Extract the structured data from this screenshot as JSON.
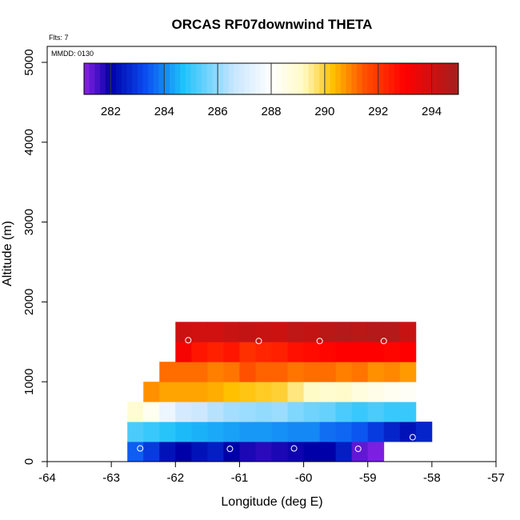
{
  "chart_data": {
    "type": "heatmap",
    "title": "ORCAS RF07downwind THETA",
    "annotations": {
      "flights": "Flts: 7",
      "mmdd": "MMDD: 0130"
    },
    "xlabel": "Longitude (deg E)",
    "ylabel": "Altitude (m)",
    "xlim": [
      -64,
      -57
    ],
    "ylim": [
      0,
      5200
    ],
    "x_ticks": [
      -64,
      -63,
      -62,
      -61,
      -60,
      -59,
      -58,
      -57
    ],
    "y_ticks": [
      0,
      1000,
      2000,
      3000,
      4000,
      5000
    ],
    "colorbar": {
      "min": 281,
      "max": 295,
      "ticks": [
        282,
        284,
        286,
        288,
        290,
        292,
        294
      ],
      "stops": [
        [
          281.0,
          "#8b22e6"
        ],
        [
          282.0,
          "#0000a8"
        ],
        [
          283.3,
          "#0a4df0"
        ],
        [
          284.7,
          "#1ec2fa"
        ],
        [
          286.6,
          "#c8e6ff"
        ],
        [
          288.0,
          "#ffffff"
        ],
        [
          289.2,
          "#fffbc6"
        ],
        [
          290.3,
          "#ffc000"
        ],
        [
          291.5,
          "#ff5000"
        ],
        [
          293.0,
          "#ff0000"
        ],
        [
          295.0,
          "#a31f1f"
        ]
      ]
    },
    "grid": {
      "cell_width_deg": 0.25,
      "cell_height_m": 250,
      "rows": [
        {
          "alt_bottom": 0,
          "lon_start": -62.75,
          "values": [
            283.5,
            283.0,
            282.3,
            282.0,
            282.3,
            282.5,
            282.0,
            281.8,
            281.7,
            281.8,
            281.9,
            282.0,
            282.0,
            282.5,
            281.3,
            281.1
          ]
        },
        {
          "alt_bottom": 250,
          "lon_start": -62.75,
          "values": [
            285.2,
            285.0,
            284.8,
            284.6,
            284.5,
            284.4,
            284.3,
            284.2,
            284.2,
            284.1,
            284.0,
            284.0,
            283.7,
            283.6,
            283.4,
            283.0,
            282.6,
            282.3,
            282.6
          ]
        },
        {
          "alt_bottom": 500,
          "lon_start": -62.75,
          "values": [
            288.9,
            288.3,
            287.5,
            286.9,
            286.7,
            286.4,
            286.2,
            286.1,
            286.0,
            286.1,
            285.8,
            285.6,
            285.5,
            285.2,
            285.0,
            285.2,
            285.0,
            285.0
          ]
        },
        {
          "alt_bottom": 750,
          "lon_start": -62.5,
          "values": [
            290.8,
            290.6,
            290.6,
            290.6,
            290.5,
            290.3,
            290.2,
            290.1,
            290.0,
            289.6,
            289.2,
            289.0,
            289.1,
            288.7,
            288.5,
            288.3,
            288.2
          ]
        },
        {
          "alt_bottom": 1000,
          "lon_start": -62.25,
          "values": [
            291.2,
            291.2,
            291.2,
            291.0,
            291.1,
            291.5,
            291.3,
            291.3,
            291.1,
            291.2,
            291.2,
            291.0,
            291.1,
            290.8,
            290.9,
            290.7
          ]
        },
        {
          "alt_bottom": 1250,
          "lon_start": -62.0,
          "values": [
            293.2,
            292.6,
            292.4,
            292.6,
            292.1,
            292.3,
            292.4,
            292.7,
            292.8,
            292.9,
            293.0,
            293.0,
            293.0,
            292.9,
            293.0
          ]
        },
        {
          "alt_bottom": 1500,
          "lon_start": -62.0,
          "values": [
            294.1,
            294.0,
            294.0,
            294.2,
            294.3,
            294.2,
            294.1,
            294.4,
            294.3,
            294.5,
            294.6,
            294.5,
            294.6,
            294.6,
            294.2
          ]
        }
      ]
    },
    "markers": [
      {
        "lon": -62.55,
        "alt": 165
      },
      {
        "lon": -61.15,
        "alt": 160
      },
      {
        "lon": -60.15,
        "alt": 165
      },
      {
        "lon": -59.15,
        "alt": 160
      },
      {
        "lon": -58.3,
        "alt": 305
      },
      {
        "lon": -61.8,
        "alt": 1520
      },
      {
        "lon": -60.7,
        "alt": 1510
      },
      {
        "lon": -59.75,
        "alt": 1510
      },
      {
        "lon": -58.75,
        "alt": 1510
      }
    ]
  }
}
